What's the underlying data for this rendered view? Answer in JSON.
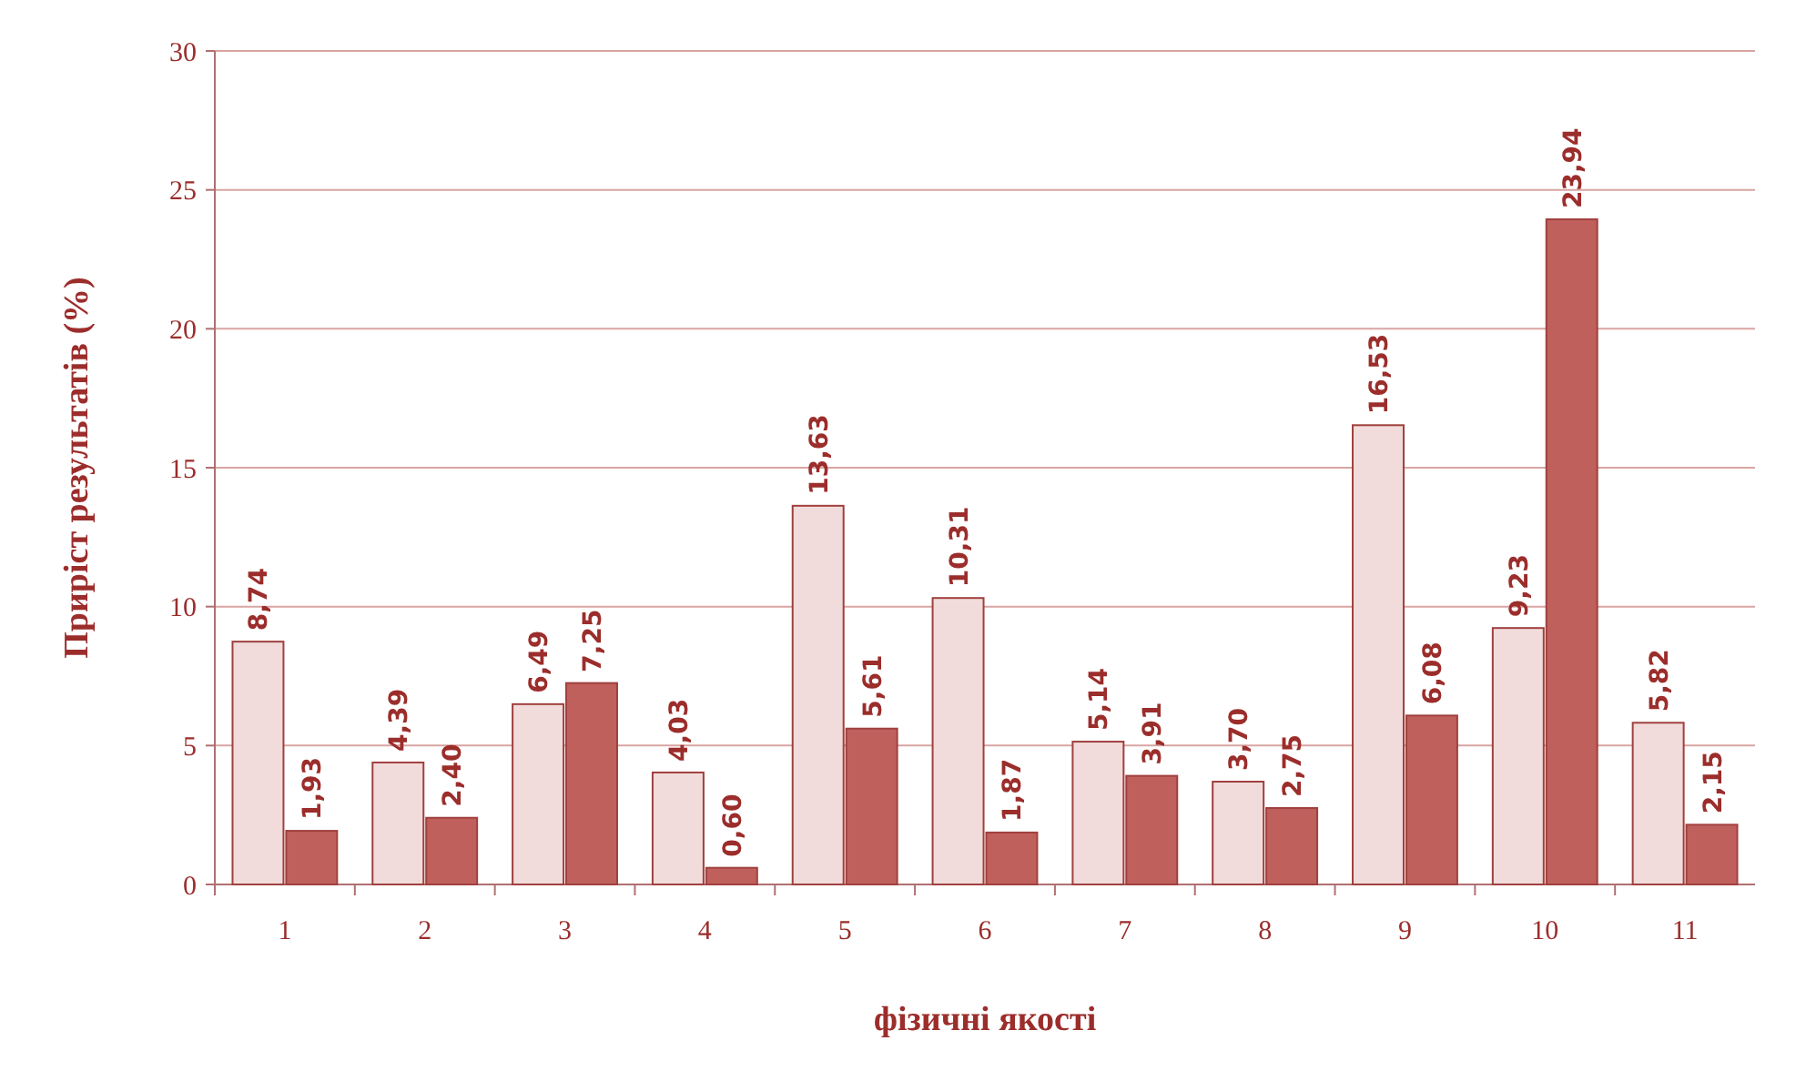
{
  "chart_data": {
    "type": "bar",
    "xlabel": "фізичні якості",
    "ylabel": "Приріст результатів (%)",
    "categories": [
      "1",
      "2",
      "3",
      "4",
      "5",
      "6",
      "7",
      "8",
      "9",
      "10",
      "11"
    ],
    "series": [
      {
        "color": "#f2dcdb",
        "values": [
          8.74,
          4.39,
          6.49,
          4.03,
          13.63,
          10.31,
          5.14,
          3.7,
          16.53,
          9.23,
          5.82
        ],
        "value_labels": [
          "8,74",
          "4,39",
          "6,49",
          "4,03",
          "13,63",
          "10,31",
          "5,14",
          "3,70",
          "16,53",
          "9,23",
          "5,82"
        ]
      },
      {
        "color": "#c0605d",
        "values": [
          1.93,
          2.4,
          7.25,
          0.6,
          5.61,
          1.87,
          3.91,
          2.75,
          6.08,
          23.94,
          2.15
        ],
        "value_labels": [
          "1,93",
          "2,40",
          "7,25",
          "0,60",
          "5,61",
          "1,87",
          "3,91",
          "2,75",
          "6,08",
          "23,94",
          "2,15"
        ]
      }
    ],
    "ylim": [
      0,
      30
    ],
    "yticks": [
      0,
      5,
      10,
      15,
      20,
      25,
      30
    ],
    "grid": "y"
  }
}
